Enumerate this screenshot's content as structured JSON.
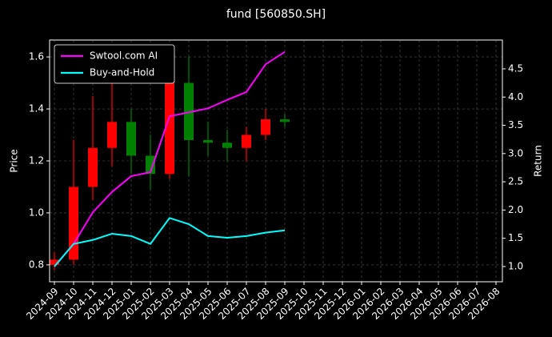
{
  "chart_data": {
    "type": "candlestick",
    "title": "fund [560850.SH]",
    "ylabel": "Price",
    "y2label": "Return",
    "x": [
      "2024-09",
      "2024-10",
      "2024-11",
      "2024-12",
      "2025-01",
      "2025-02",
      "2025-03",
      "2025-04",
      "2025-05",
      "2025-06",
      "2025-07",
      "2025-08",
      "2025-09"
    ],
    "open": [
      0.8,
      0.82,
      1.1,
      1.25,
      1.35,
      1.22,
      1.15,
      1.5,
      1.28,
      1.27,
      1.25,
      1.3,
      1.36
    ],
    "high": [
      0.85,
      1.28,
      1.45,
      1.58,
      1.4,
      1.3,
      1.62,
      1.6,
      1.35,
      1.32,
      1.33,
      1.4,
      1.38
    ],
    "low": [
      0.78,
      0.8,
      1.05,
      1.18,
      1.15,
      1.09,
      1.13,
      1.14,
      1.22,
      1.2,
      1.2,
      1.28,
      1.33
    ],
    "close": [
      0.82,
      1.1,
      1.25,
      1.35,
      1.22,
      1.15,
      1.5,
      1.28,
      1.27,
      1.25,
      1.3,
      1.36,
      1.35
    ],
    "up_color": "#ff0000",
    "down_color": "#008000",
    "series": [
      {
        "name": "Swtool.com AI",
        "color": "#ff00ff",
        "axis": "y2",
        "values": [
          1.0,
          1.4,
          1.96,
          2.32,
          2.6,
          2.67,
          3.66,
          3.73,
          3.8,
          3.95,
          4.09,
          4.58,
          4.8
        ]
      },
      {
        "name": "Buy-and-Hold",
        "color": "#00ffff",
        "axis": "y2",
        "values": [
          1.0,
          1.4,
          1.47,
          1.58,
          1.54,
          1.4,
          1.86,
          1.75,
          1.54,
          1.51,
          1.54,
          1.6,
          1.64
        ]
      }
    ],
    "xlim": [
      "2024-09",
      "2026-08"
    ],
    "xticks": [
      "2024-09",
      "2024-10",
      "2024-11",
      "2024-12",
      "2025-01",
      "2025-02",
      "2025-03",
      "2025-04",
      "2025-05",
      "2025-06",
      "2025-07",
      "2025-08",
      "2025-09",
      "2025-10",
      "2025-11",
      "2025-12",
      "2026-01",
      "2026-02",
      "2026-03",
      "2026-04",
      "2026-05",
      "2026-06",
      "2026-07",
      "2026-08"
    ],
    "ylim": [
      0.735,
      1.665
    ],
    "yticks": [
      0.8,
      {
        "value": 1,
        "label": "1.0"
      },
      1.2,
      1.4,
      1.6
    ],
    "y2lim": [
      0.73,
      5.01
    ],
    "y2ticks": [
      {
        "value": 1,
        "label": "1.0"
      },
      1.5,
      {
        "value": 2,
        "label": "2.0"
      },
      2.5,
      {
        "value": 3,
        "label": "3.0"
      },
      3.5,
      {
        "value": 4,
        "label": "4.0"
      },
      4.5
    ],
    "grid": true,
    "legend": "upper left"
  }
}
